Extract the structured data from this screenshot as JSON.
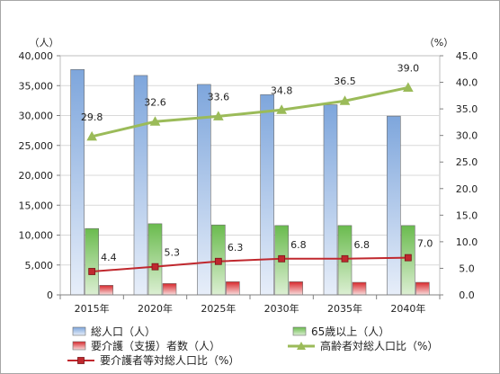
{
  "chart_data": {
    "type": "bar+line",
    "categories": [
      "2015年",
      "2020年",
      "2025年",
      "2030年",
      "2035年",
      "2040年"
    ],
    "left_axis": {
      "unit_label": "（人）",
      "ylim": [
        0,
        40000
      ],
      "ticks": [
        "0",
        "5,000",
        "10,000",
        "15,000",
        "20,000",
        "25,000",
        "30,000",
        "35,000",
        "40,000"
      ]
    },
    "right_axis": {
      "unit_label": "（%）",
      "ylim": [
        0,
        45
      ],
      "ticks": [
        "0.0",
        "5.0",
        "10.0",
        "15.0",
        "20.0",
        "25.0",
        "30.0",
        "35.0",
        "40.0",
        "45.0"
      ]
    },
    "bar_series": [
      {
        "name": "総人口（人）",
        "color": "#7ea6dc",
        "values": [
          37700,
          36700,
          35200,
          33500,
          31800,
          29900
        ]
      },
      {
        "name": "65歳以上（人）",
        "color": "#6abb4e",
        "values": [
          11100,
          11900,
          11700,
          11600,
          11600,
          11600
        ]
      },
      {
        "name": "要介護（支援）者数（人）",
        "color": "#d8282c",
        "values": [
          1600,
          1900,
          2200,
          2200,
          2100,
          2100
        ]
      }
    ],
    "line_series": [
      {
        "name": "高齢者対総人口比（%）",
        "color": "#9bbb59",
        "marker": "triangle",
        "values": [
          29.8,
          32.6,
          33.6,
          34.8,
          36.5,
          39.0
        ],
        "labels": [
          "29.8",
          "32.6",
          "33.6",
          "34.8",
          "36.5",
          "39.0"
        ]
      },
      {
        "name": "要介護者等対総人口比（%）",
        "color": "#c0282e",
        "marker": "square",
        "values": [
          4.4,
          5.3,
          6.3,
          6.8,
          6.8,
          7.0
        ],
        "labels": [
          "4.4",
          "5.3",
          "6.3",
          "6.8",
          "6.8",
          "7.0"
        ]
      }
    ],
    "grid": true,
    "legend": "bottom"
  }
}
